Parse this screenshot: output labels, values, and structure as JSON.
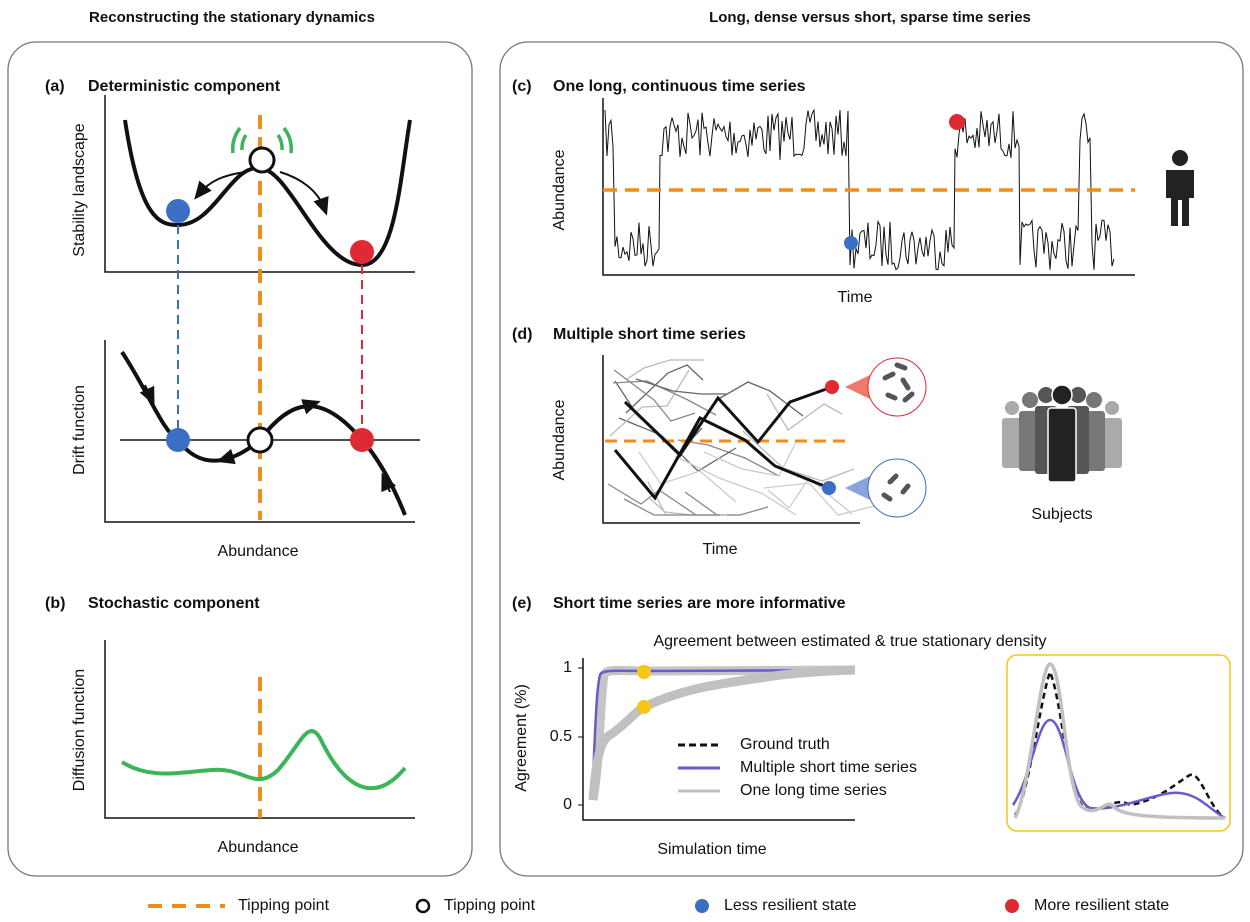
{
  "headers": {
    "left": "Reconstructing the stationary dynamics",
    "right": "Long, dense versus short, sparse time series"
  },
  "panel_a": {
    "label": "(a)",
    "title": "Deterministic component",
    "y_label_top": "Stability landscape",
    "y_label_bottom": "Drift function",
    "x_label": "Abundance"
  },
  "panel_b": {
    "label": "(b)",
    "title": "Stochastic component",
    "y_label": "Diffusion function",
    "x_label": "Abundance"
  },
  "panel_c": {
    "label": "(c)",
    "title": "One long, continuous time series",
    "y_label": "Abundance",
    "x_label": "Time"
  },
  "panel_d": {
    "label": "(d)",
    "title": "Multiple short time series",
    "y_label": "Abundance",
    "x_label": "Time",
    "icon_label": "Subjects"
  },
  "panel_e": {
    "label": "(e)",
    "title": "Short time series are more informative",
    "subtitle": "Agreement between estimated & true stationary density",
    "y_label": "Agreement (%)",
    "x_label": "Simulation time",
    "yticks": [
      1,
      0.5,
      0
    ],
    "legend": [
      "Ground truth",
      "Multiple short time series",
      "One long time series"
    ]
  },
  "legend": [
    "Tipping point",
    "Tipping point",
    "Less resilient state",
    "More resilient state"
  ]
}
